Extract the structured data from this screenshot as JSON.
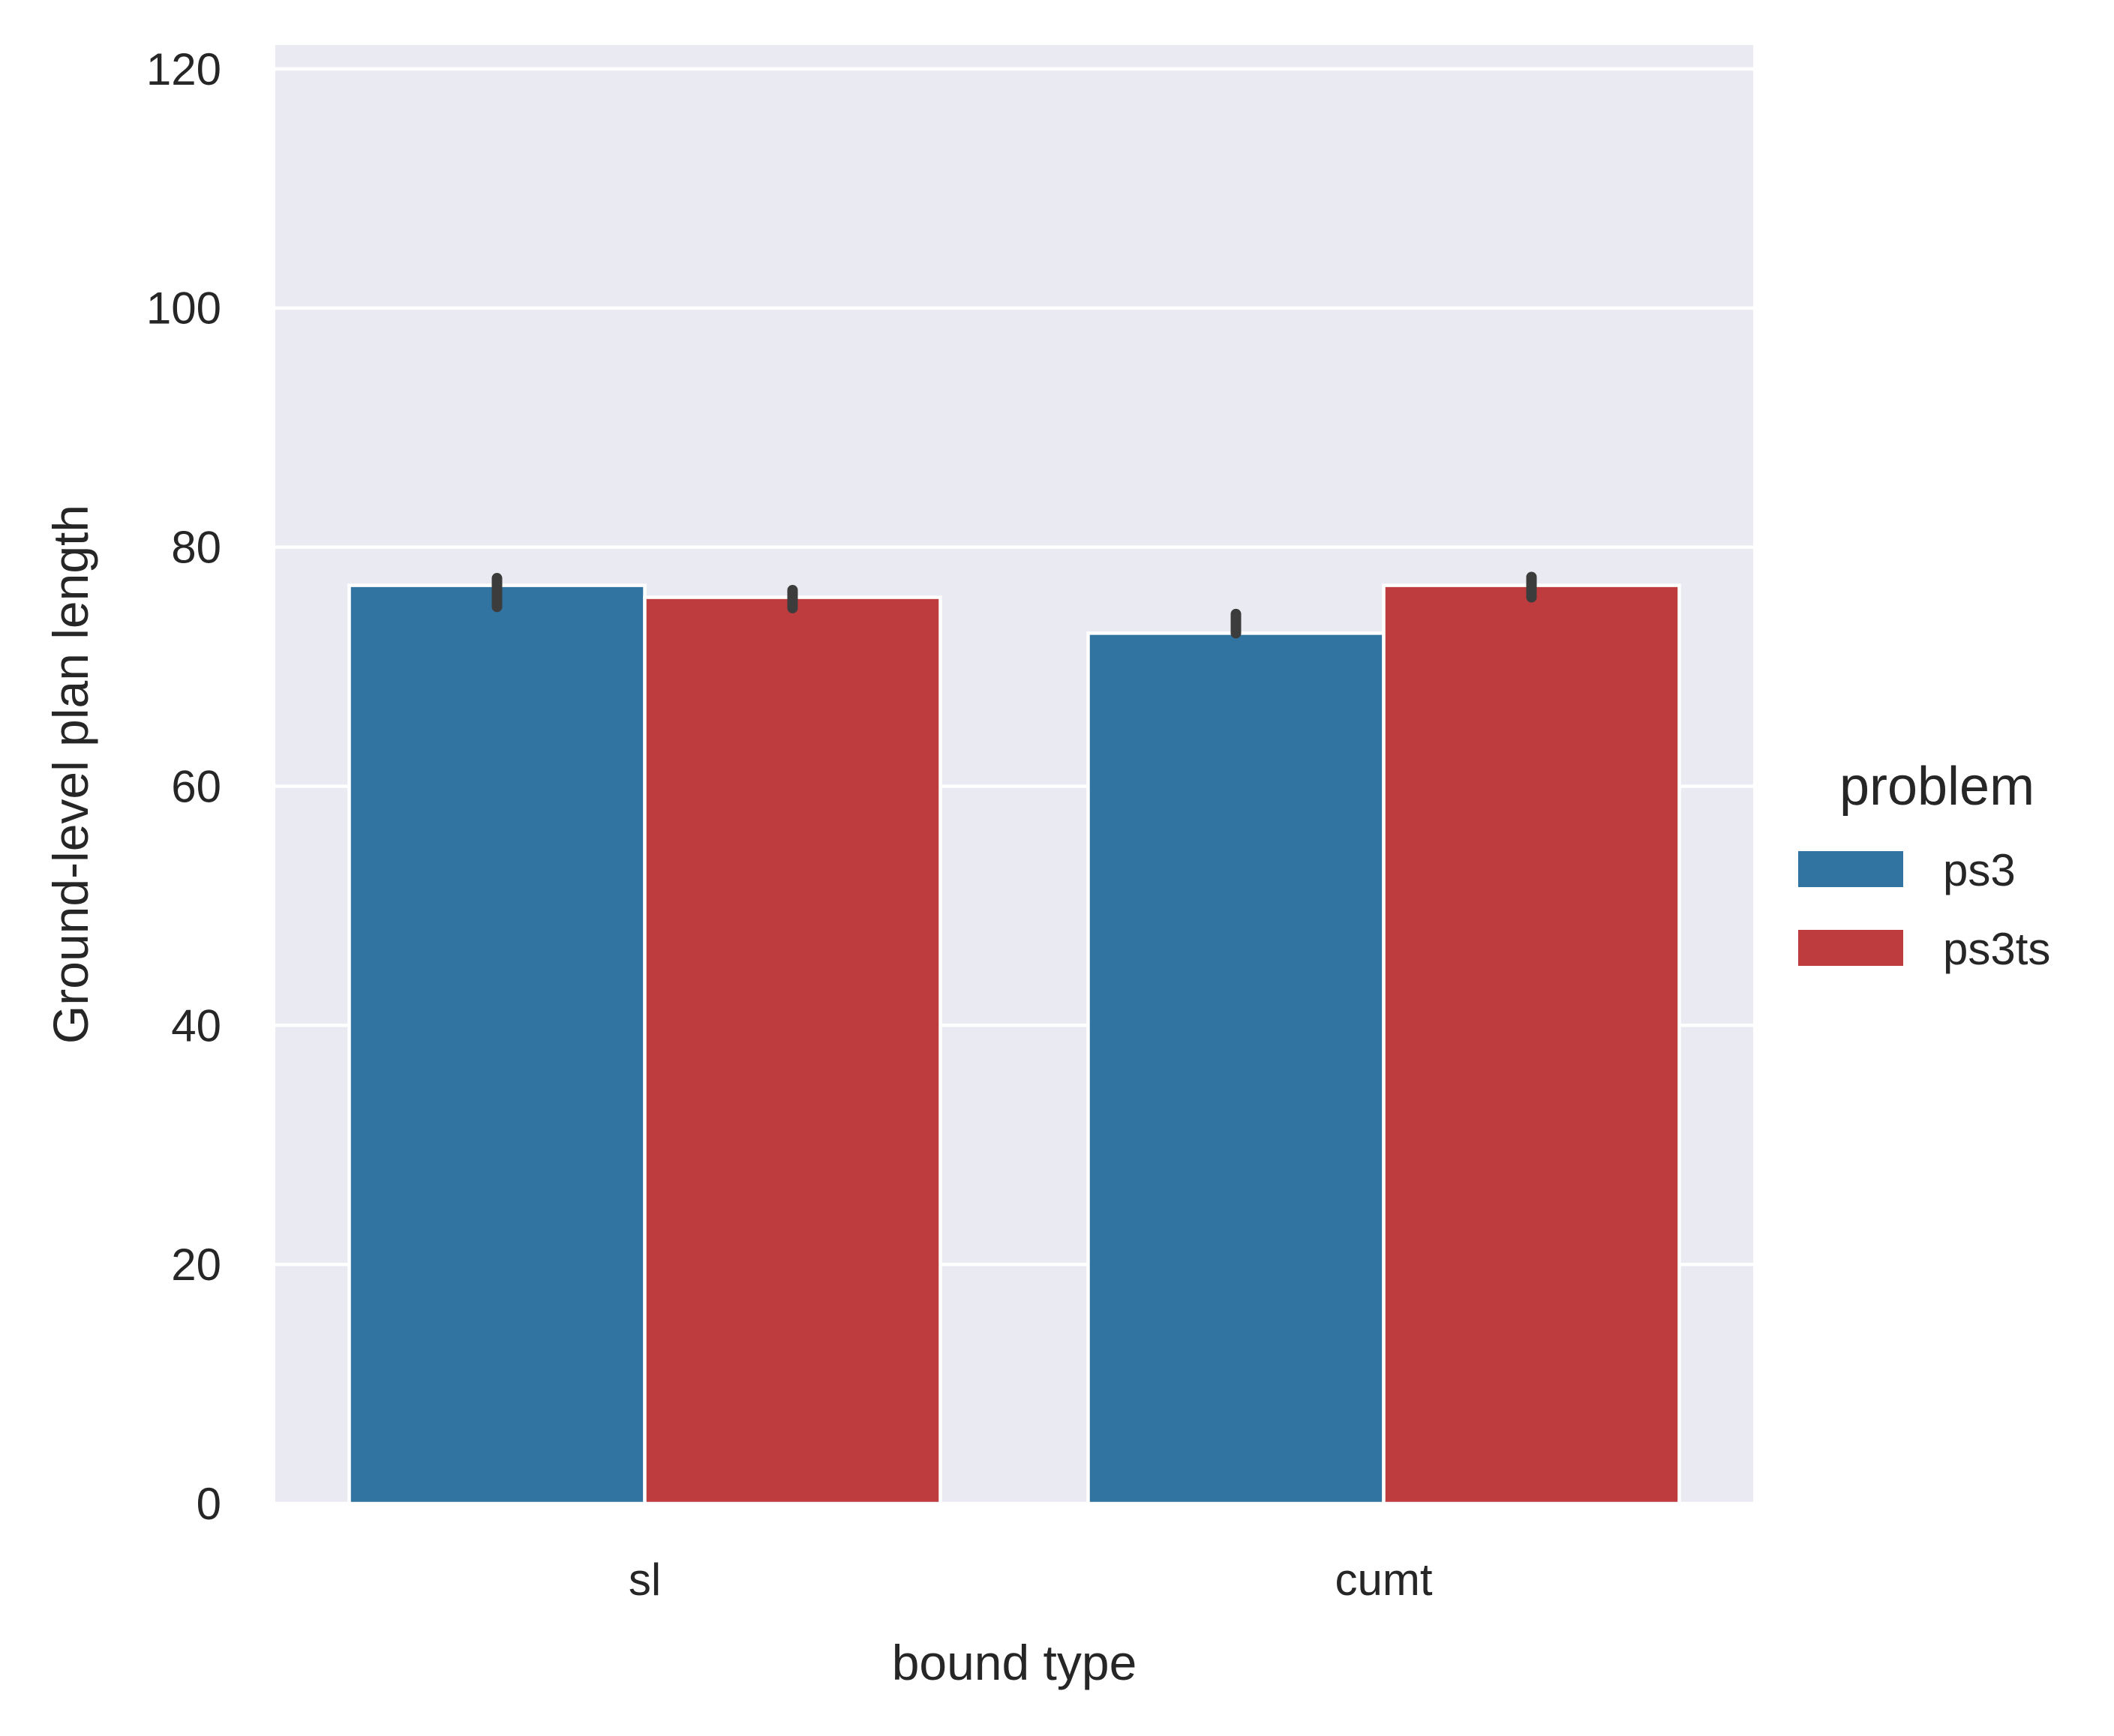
{
  "chart_data": {
    "type": "bar",
    "title": "",
    "xlabel": "bound type",
    "ylabel": "Ground-level plan length",
    "categories": [
      "sl",
      "cumt"
    ],
    "series": [
      {
        "name": "ps3",
        "color": "#3274a1",
        "values": [
          76.8,
          72.8
        ],
        "error_low": [
          75.0,
          72.8
        ],
        "error_high": [
          77.4,
          74.4
        ]
      },
      {
        "name": "ps3ts",
        "color": "#be3c3e",
        "values": [
          75.8,
          76.8
        ],
        "error_low": [
          74.9,
          75.8
        ],
        "error_high": [
          76.4,
          77.5
        ]
      }
    ],
    "ylim": [
      0,
      122
    ],
    "yticks": [
      0,
      20,
      40,
      60,
      80,
      100,
      120
    ],
    "grid": true,
    "background": "#eaeaf2",
    "error_bar_color": "#3c3c3c",
    "legend": {
      "title": "problem",
      "placement": "right"
    }
  }
}
